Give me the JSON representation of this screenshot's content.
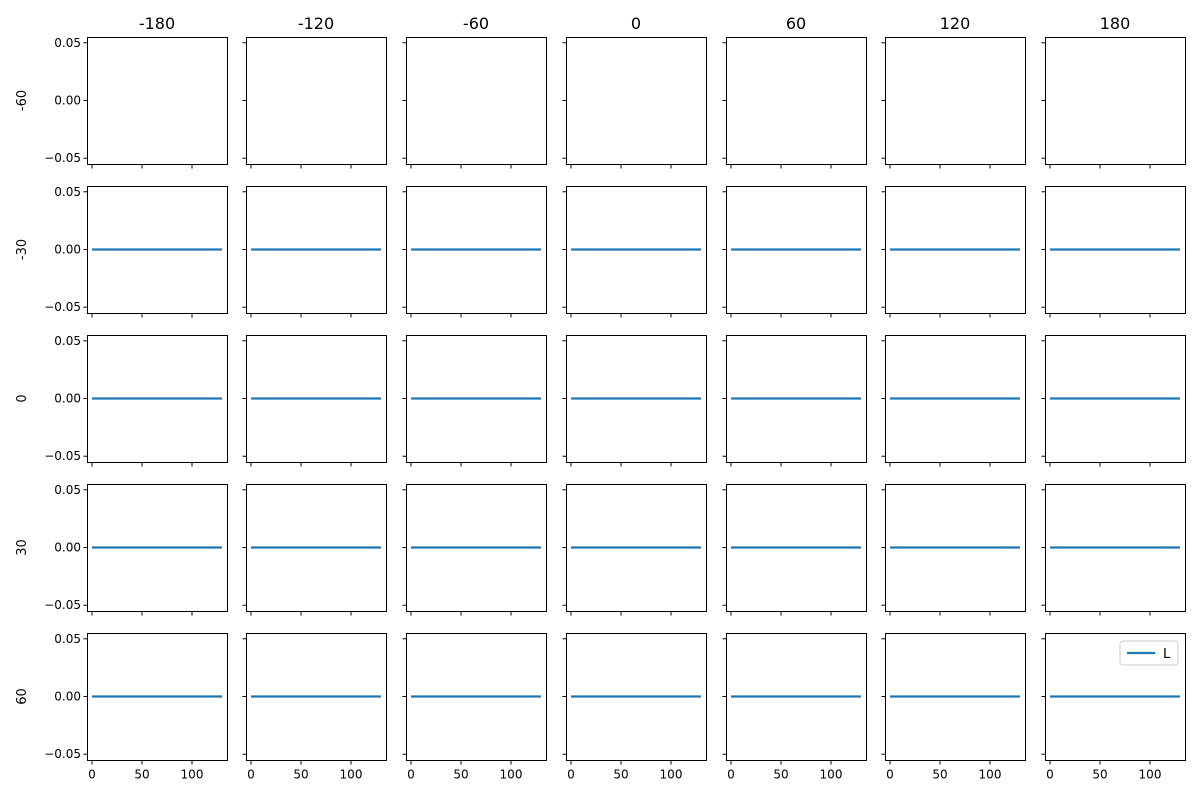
{
  "chart_data": {
    "type": "line",
    "layout": "grid of small multiples",
    "column_titles": [
      "-180",
      "-120",
      "-60",
      "0",
      "60",
      "120",
      "180"
    ],
    "row_labels": [
      "-60",
      "-30",
      "0",
      "30",
      "60"
    ],
    "xlim": [
      -5,
      135
    ],
    "ylim": [
      -0.055,
      0.055
    ],
    "x_ticks": [
      0,
      50,
      100
    ],
    "x_tick_labels": [
      "0",
      "50",
      "100"
    ],
    "y_ticks": [
      0.05,
      0.0,
      -0.05
    ],
    "y_tick_labels": [
      "0.05",
      "0.00",
      "−0.05"
    ],
    "series": [
      {
        "name": "L",
        "x": [
          0,
          130
        ],
        "y": [
          0.0,
          0.0
        ]
      }
    ],
    "empty_rows": [
      "-60"
    ],
    "legend": {
      "entries": [
        "L"
      ],
      "location": "upper right of bottom-right panel"
    },
    "line_color": "#1f77b4",
    "grid": false
  }
}
